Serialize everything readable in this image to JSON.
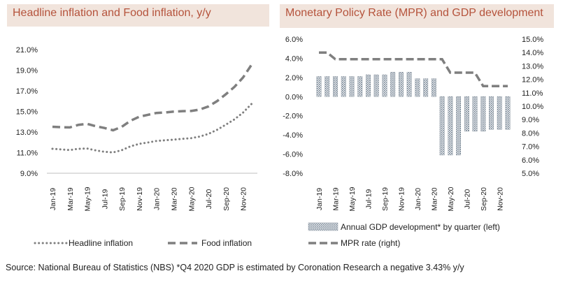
{
  "source": "Source: National Bureau of Statistics (NBS) *Q4 2020 GDP is estimated by Coronation Research a negative 3.43% y/y",
  "colors": {
    "title_bg": "#f1e4dc",
    "title_text": "#b5533c",
    "series_gray": "#7f7f7f"
  },
  "chart_data": [
    {
      "type": "line",
      "title": "Headline inflation and Food inflation, y/y",
      "categories": [
        "Jan-19",
        "Feb-19",
        "Mar-19",
        "Apr-19",
        "May-19",
        "Jun-19",
        "Jul-19",
        "Aug-19",
        "Sep-19",
        "Oct-19",
        "Nov-19",
        "Dec-19",
        "Jan-20",
        "Feb-20",
        "Mar-20",
        "Apr-20",
        "May-20",
        "Jun-20",
        "Jul-20",
        "Aug-20",
        "Sep-20",
        "Oct-20",
        "Nov-20",
        "Dec-20"
      ],
      "x_tick_labels": [
        "Jan-19",
        "Mar-19",
        "May-19",
        "Jul-19",
        "Sep-19",
        "Nov-19",
        "Jan-20",
        "Mar-20",
        "May-20",
        "Jul-20",
        "Sep-20",
        "Nov-20"
      ],
      "y_tick_labels": [
        "9.0%",
        "11.0%",
        "13.0%",
        "15.0%",
        "17.0%",
        "19.0%",
        "21.0%"
      ],
      "ylim": [
        9,
        21
      ],
      "series": [
        {
          "name": "Headline inflation",
          "style": "dotted",
          "values": [
            11.37,
            11.31,
            11.25,
            11.37,
            11.4,
            11.22,
            11.08,
            11.02,
            11.24,
            11.61,
            11.85,
            11.98,
            12.13,
            12.2,
            12.26,
            12.34,
            12.4,
            12.56,
            12.82,
            13.22,
            13.71,
            14.23,
            14.89,
            15.75
          ]
        },
        {
          "name": "Food inflation",
          "style": "dashed",
          "values": [
            13.51,
            13.47,
            13.45,
            13.7,
            13.79,
            13.56,
            13.39,
            13.17,
            13.51,
            14.09,
            14.48,
            14.67,
            14.85,
            14.9,
            14.98,
            15.03,
            15.04,
            15.18,
            15.48,
            16.0,
            16.66,
            17.38,
            18.3,
            19.56
          ]
        }
      ]
    },
    {
      "type": "bar",
      "title": "Monetary Policy Rate (MPR) and GDP development",
      "categories": [
        "Jan-19",
        "Feb-19",
        "Mar-19",
        "Apr-19",
        "May-19",
        "Jun-19",
        "Jul-19",
        "Aug-19",
        "Sep-19",
        "Oct-19",
        "Nov-19",
        "Dec-19",
        "Jan-20",
        "Feb-20",
        "Mar-20",
        "Apr-20",
        "May-20",
        "Jun-20",
        "Jul-20",
        "Aug-20",
        "Sep-20",
        "Oct-20",
        "Nov-20",
        "Dec-20"
      ],
      "x_tick_labels": [
        "Jan-19",
        "Mar-19",
        "May-19",
        "Jul-19",
        "Sep-19",
        "Nov-19",
        "Jan-20",
        "Mar-20",
        "May-20",
        "Jul-20",
        "Sep-20",
        "Nov-20"
      ],
      "y_left_tick_labels": [
        "-8.0%",
        "-6.0%",
        "-4.0%",
        "-2.0%",
        "0.0%",
        "2.0%",
        "4.0%",
        "6.0%"
      ],
      "y_right_tick_labels": [
        "5.0%",
        "6.0%",
        "7.0%",
        "8.0%",
        "9.0%",
        "10.0%",
        "11.0%",
        "12.0%",
        "13.0%",
        "14.0%",
        "15.0%"
      ],
      "ylim_left": [
        -8,
        6
      ],
      "ylim_right": [
        5,
        15
      ],
      "series": [
        {
          "name": "Annual GDP development* by quarter (left)",
          "axis": "left",
          "type": "bar",
          "values": [
            2.1,
            2.1,
            2.1,
            2.1,
            2.1,
            2.1,
            2.28,
            2.28,
            2.28,
            2.55,
            2.55,
            2.55,
            1.87,
            1.87,
            1.87,
            -6.1,
            -6.1,
            -6.1,
            -3.62,
            -3.62,
            -3.62,
            -3.43,
            -3.43,
            -3.43
          ]
        },
        {
          "name": "MPR rate (right)",
          "axis": "right",
          "type": "line",
          "style": "dashed",
          "values": [
            14.0,
            14.0,
            13.5,
            13.5,
            13.5,
            13.5,
            13.5,
            13.5,
            13.5,
            13.5,
            13.5,
            13.5,
            13.5,
            13.5,
            13.5,
            13.5,
            12.5,
            12.5,
            12.5,
            12.5,
            11.5,
            11.5,
            11.5,
            11.5
          ]
        }
      ]
    }
  ]
}
